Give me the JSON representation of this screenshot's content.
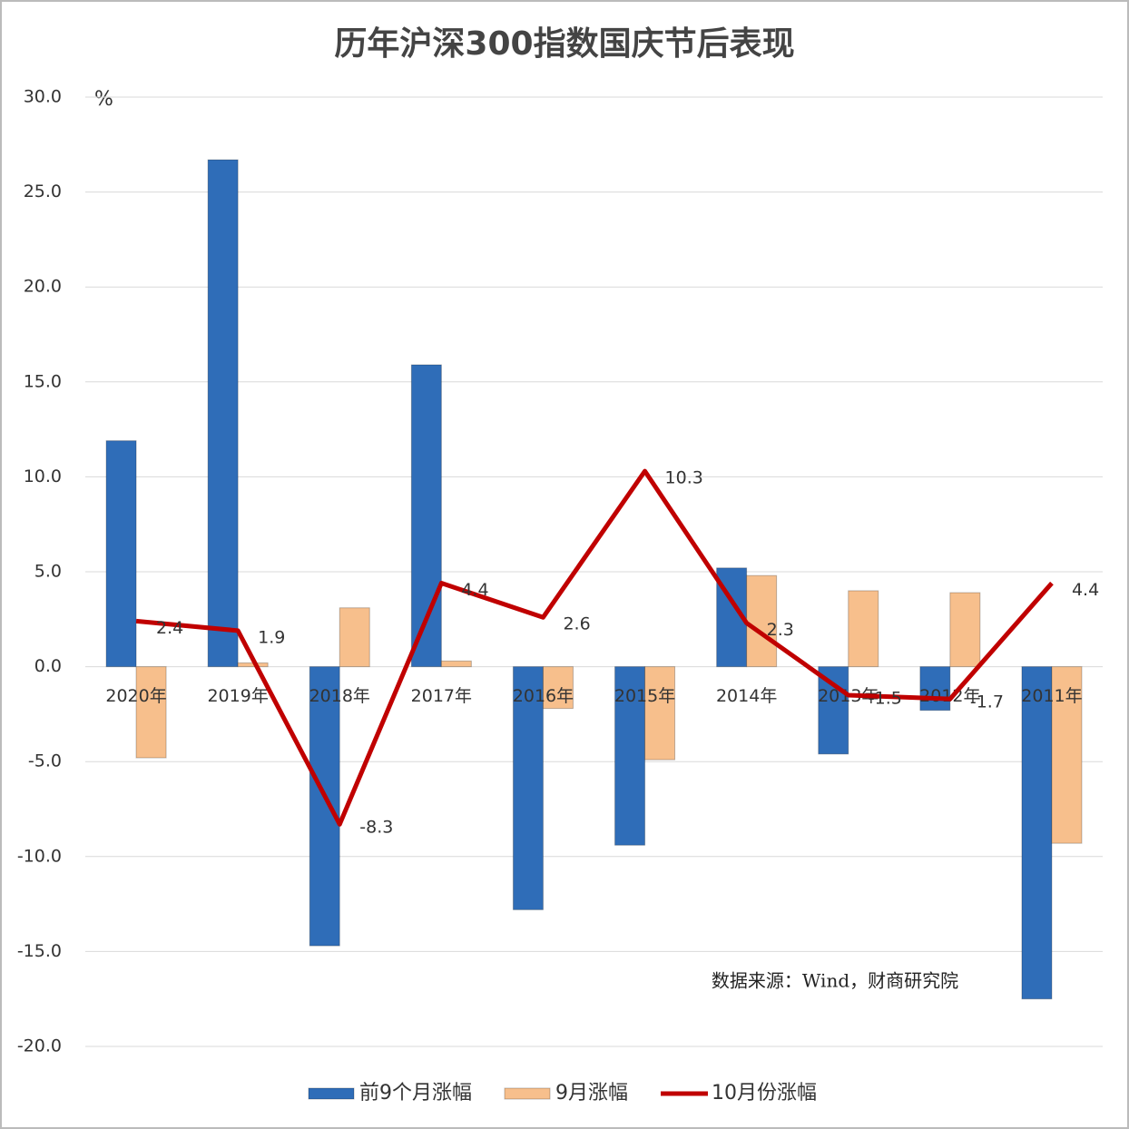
{
  "chart_data": {
    "type": "bar",
    "title": "历年沪深300指数国庆节后表现",
    "y_unit": "%",
    "source_note": "数据来源：Wind，财商研究院",
    "categories": [
      "2020年",
      "2019年",
      "2018年",
      "2017年",
      "2016年",
      "2015年",
      "2014年",
      "2013年",
      "2012年",
      "2011年"
    ],
    "series": [
      {
        "name": "前9个月涨幅",
        "type": "bar",
        "color": "#2f6db8",
        "values": [
          11.9,
          26.7,
          -14.7,
          15.9,
          -12.8,
          -9.4,
          5.2,
          -4.6,
          -2.3,
          -17.5
        ]
      },
      {
        "name": "9月涨幅",
        "type": "bar",
        "color": "#f7bf8c",
        "values": [
          -4.8,
          0.2,
          3.1,
          0.3,
          -2.2,
          -4.9,
          4.8,
          4.0,
          3.9,
          -9.3
        ]
      },
      {
        "name": "10月份涨幅",
        "type": "line",
        "color": "#c00000",
        "values": [
          2.4,
          1.9,
          -8.3,
          4.4,
          2.6,
          10.3,
          2.3,
          -1.5,
          -1.7,
          4.4
        ]
      }
    ],
    "ylim": [
      -20,
      30
    ],
    "yticks": [
      {
        "value": -20,
        "label": "-20.0"
      },
      {
        "value": -15,
        "label": "-15.0"
      },
      {
        "value": -10,
        "label": "-10.0"
      },
      {
        "value": -5,
        "label": "-5.0"
      },
      {
        "value": 0,
        "label": "0.0"
      },
      {
        "value": 5,
        "label": "5.0"
      },
      {
        "value": 10,
        "label": "10.0"
      },
      {
        "value": 15,
        "label": "15.0"
      },
      {
        "value": 20,
        "label": "20.0"
      },
      {
        "value": 25,
        "label": "25.0"
      },
      {
        "value": 30,
        "label": "30.0"
      }
    ],
    "grid": true
  }
}
